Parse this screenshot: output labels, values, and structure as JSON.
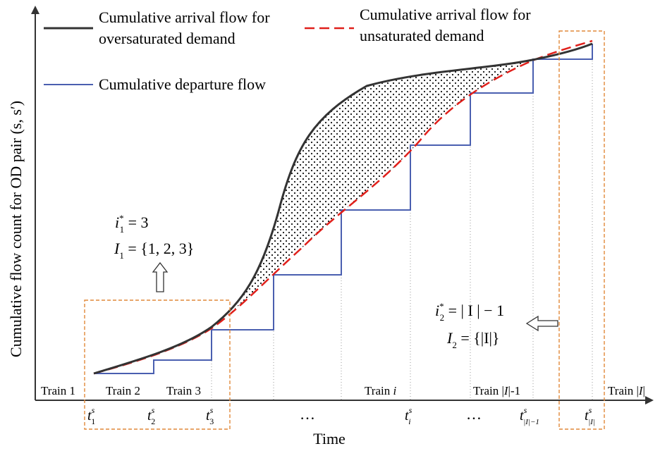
{
  "diagram": {
    "y_axis_label": "Cumulative flow count for OD pair (s, s′)",
    "x_axis_label": "Time",
    "legend": {
      "oversaturated": [
        "Cumulative arrival flow for",
        "oversaturated demand"
      ],
      "unsaturated": [
        "Cumulative arrival flow for",
        "unsaturated demand"
      ],
      "departure": "Cumulative departure flow"
    },
    "train_labels": {
      "train1": "Train 1",
      "train2": "Train 2",
      "train3": "Train 3",
      "train_i_prefix": "Train",
      "train_i_var": "i",
      "train_last_minus_one_prefix": "Train |",
      "train_last_minus_one_var": "I",
      "train_last_minus_one_suffix": "|-1",
      "train_last_prefix": "Train |",
      "train_last_var": "I",
      "train_last_suffix": "|"
    },
    "time_ticks": {
      "base": "t",
      "sup": "s",
      "subs": [
        "1",
        "2",
        "3",
        "i",
        "|I|−1",
        "|I|"
      ]
    },
    "ellipses": [
      "…",
      "…"
    ],
    "annotation_left": {
      "line1_var": "i",
      "line1_sub": "1",
      "line1_sup": "*",
      "line1_rhs": " = 3",
      "line2_var": "I",
      "line2_sub": "1",
      "line2_rhs": " = {1, 2, 3}"
    },
    "annotation_right": {
      "line1_var": "i",
      "line1_sub": "2",
      "line1_sup": "*",
      "line1_rhs": " = | I | − 1",
      "line2_var": "I",
      "line2_sub": "2",
      "line2_rhs": " = {|I|}"
    },
    "colors": {
      "oversaturated": "#333333",
      "unsaturated": "#e0201b",
      "departure": "#4a5fb0",
      "highlight_box": "#e0893a",
      "axis": "#333333"
    }
  }
}
